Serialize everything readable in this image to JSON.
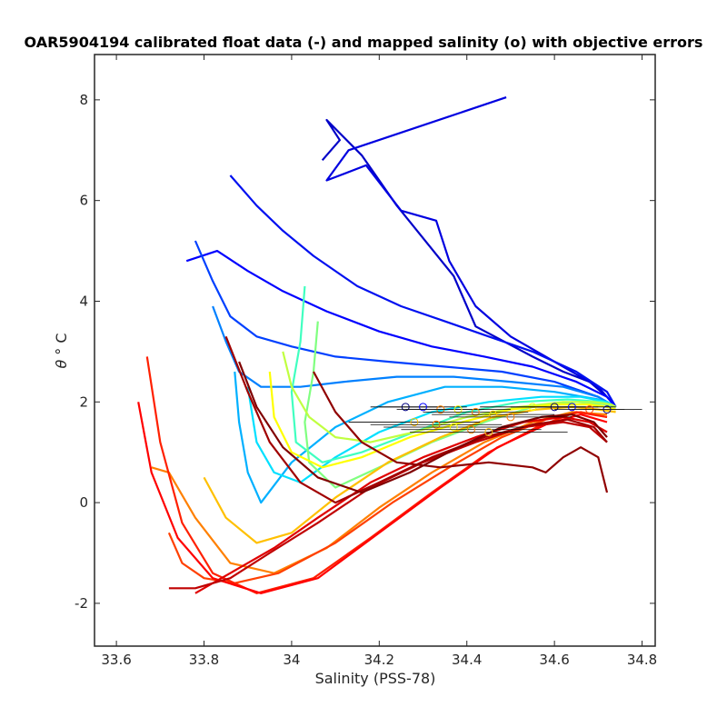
{
  "chart_data": {
    "type": "line",
    "title": "OAR5904194 calibrated float data (-) and mapped salinity (o) with objective errors",
    "xlabel": "Salinity (PSS-78)",
    "ylabel_symbol": "θ",
    "ylabel_unit": "° C",
    "xlim": [
      33.55,
      34.83
    ],
    "ylim": [
      -2.85,
      8.9
    ],
    "xticks": [
      33.6,
      33.8,
      34,
      34.2,
      34.4,
      34.6,
      34.8
    ],
    "xtick_labels": [
      "33.6",
      "33.8",
      "34",
      "34.2",
      "34.4",
      "34.6",
      "34.8"
    ],
    "yticks": [
      -2,
      0,
      2,
      4,
      6,
      8
    ],
    "ytick_labels": [
      "-2",
      "0",
      "2",
      "4",
      "6",
      "8"
    ],
    "grid": false,
    "colormap": "jet",
    "color_stops": [
      "#00008f",
      "#0000ff",
      "#00ffff",
      "#ffff00",
      "#ff0000",
      "#800000"
    ],
    "series": [
      {
        "color": "#0000c8",
        "x": [
          34.07,
          34.11,
          34.08,
          34.16,
          34.24,
          34.37,
          34.42,
          34.55,
          34.62,
          34.68,
          34.72,
          34.74
        ],
        "y": [
          6.8,
          7.2,
          7.6,
          6.9,
          5.9,
          4.5,
          3.5,
          2.9,
          2.6,
          2.4,
          2.1,
          1.9
        ]
      },
      {
        "color": "#0000e0",
        "x": [
          34.49,
          34.13,
          34.08,
          34.17,
          34.25,
          34.33,
          34.36,
          34.42,
          34.5,
          34.6,
          34.7,
          34.74
        ],
        "y": [
          8.05,
          7.0,
          6.4,
          6.7,
          5.8,
          5.6,
          4.8,
          3.9,
          3.3,
          2.8,
          2.3,
          1.9
        ]
      },
      {
        "color": "#0010f0",
        "x": [
          33.86,
          33.92,
          33.98,
          34.05,
          34.15,
          34.25,
          34.35,
          34.45,
          34.55,
          34.65,
          34.72,
          34.74
        ],
        "y": [
          6.5,
          5.9,
          5.4,
          4.9,
          4.3,
          3.9,
          3.6,
          3.3,
          3.0,
          2.6,
          2.2,
          1.9
        ]
      },
      {
        "color": "#0000ff",
        "x": [
          33.76,
          33.83,
          33.9,
          33.98,
          34.08,
          34.2,
          34.32,
          34.44,
          34.55,
          34.65,
          34.72,
          34.74
        ],
        "y": [
          4.8,
          5.0,
          4.6,
          4.2,
          3.8,
          3.4,
          3.1,
          2.9,
          2.7,
          2.4,
          2.1,
          1.9
        ]
      },
      {
        "color": "#0040ff",
        "x": [
          33.78,
          33.82,
          33.86,
          33.92,
          34.0,
          34.1,
          34.22,
          34.35,
          34.48,
          34.6,
          34.7,
          34.74
        ],
        "y": [
          5.2,
          4.4,
          3.7,
          3.3,
          3.1,
          2.9,
          2.8,
          2.7,
          2.6,
          2.4,
          2.1,
          1.9
        ]
      },
      {
        "color": "#0080ff",
        "x": [
          33.82,
          33.85,
          33.88,
          33.93,
          34.02,
          34.12,
          34.24,
          34.37,
          34.5,
          34.62,
          34.7,
          34.74
        ],
        "y": [
          3.9,
          3.2,
          2.6,
          2.3,
          2.3,
          2.4,
          2.5,
          2.5,
          2.4,
          2.3,
          2.1,
          1.9
        ]
      },
      {
        "color": "#00b0ff",
        "x": [
          33.87,
          33.88,
          33.9,
          33.93,
          34.0,
          34.1,
          34.22,
          34.35,
          34.48,
          34.6,
          34.7,
          34.74
        ],
        "y": [
          2.6,
          1.6,
          0.6,
          0.0,
          0.8,
          1.5,
          2.0,
          2.3,
          2.3,
          2.2,
          2.05,
          1.9
        ]
      },
      {
        "color": "#00e0ff",
        "x": [
          33.9,
          33.92,
          33.96,
          34.02,
          34.1,
          34.2,
          34.32,
          34.45,
          34.57,
          34.66,
          34.72,
          34.74
        ],
        "y": [
          2.3,
          1.2,
          0.6,
          0.4,
          0.9,
          1.4,
          1.8,
          2.0,
          2.1,
          2.1,
          2.0,
          1.9
        ]
      },
      {
        "color": "#40ffc0",
        "x": [
          34.03,
          34.02,
          34.0,
          34.01,
          34.07,
          34.16,
          34.28,
          34.4,
          34.52,
          34.63,
          34.71,
          34.74
        ],
        "y": [
          4.3,
          3.2,
          2.2,
          1.2,
          0.8,
          1.0,
          1.4,
          1.8,
          2.0,
          2.05,
          2.0,
          1.9
        ]
      },
      {
        "color": "#80ff80",
        "x": [
          34.06,
          34.05,
          34.03,
          34.04,
          34.1,
          34.2,
          34.32,
          34.44,
          34.55,
          34.65,
          34.72,
          34.74
        ],
        "y": [
          3.6,
          2.6,
          1.6,
          0.8,
          0.3,
          0.7,
          1.2,
          1.6,
          1.9,
          2.0,
          1.95,
          1.9
        ]
      },
      {
        "color": "#c0ff40",
        "x": [
          33.98,
          34.0,
          34.04,
          34.1,
          34.18,
          34.28,
          34.4,
          34.52,
          34.62,
          34.69,
          34.73,
          34.74
        ],
        "y": [
          3.0,
          2.3,
          1.7,
          1.3,
          1.2,
          1.4,
          1.7,
          1.9,
          2.0,
          2.0,
          1.95,
          1.9
        ]
      },
      {
        "color": "#ffff00",
        "x": [
          33.95,
          33.96,
          34.0,
          34.07,
          34.16,
          34.27,
          34.39,
          34.5,
          34.6,
          34.68,
          34.72,
          34.74
        ],
        "y": [
          2.6,
          1.7,
          1.0,
          0.7,
          0.9,
          1.3,
          1.6,
          1.85,
          1.95,
          1.95,
          1.9,
          1.85
        ]
      },
      {
        "color": "#ffc000",
        "x": [
          33.8,
          33.85,
          33.92,
          34.0,
          34.1,
          34.22,
          34.34,
          34.46,
          34.56,
          34.64,
          34.7,
          34.74
        ],
        "y": [
          0.5,
          -0.3,
          -0.8,
          -0.6,
          0.1,
          0.8,
          1.3,
          1.7,
          1.85,
          1.9,
          1.85,
          1.8
        ]
      },
      {
        "color": "#ff8000",
        "x": [
          33.68,
          33.72,
          33.78,
          33.86,
          33.96,
          34.08,
          34.2,
          34.32,
          34.44,
          34.55,
          34.64,
          34.72
        ],
        "y": [
          0.7,
          0.6,
          -0.3,
          -1.2,
          -1.4,
          -0.9,
          -0.1,
          0.6,
          1.2,
          1.6,
          1.8,
          1.75
        ]
      },
      {
        "color": "#ff4000",
        "x": [
          33.72,
          33.75,
          33.8,
          33.87,
          33.97,
          34.1,
          34.23,
          34.36,
          34.48,
          34.58,
          34.66,
          34.72
        ],
        "y": [
          -0.6,
          -1.2,
          -1.5,
          -1.6,
          -1.4,
          -0.8,
          0.0,
          0.7,
          1.3,
          1.65,
          1.8,
          1.7
        ]
      },
      {
        "color": "#ff2000",
        "x": [
          33.67,
          33.7,
          33.75,
          33.82,
          33.92,
          34.05,
          34.18,
          34.32,
          34.45,
          34.56,
          34.65,
          34.72
        ],
        "y": [
          2.9,
          1.2,
          -0.4,
          -1.4,
          -1.8,
          -1.5,
          -0.7,
          0.2,
          1.0,
          1.5,
          1.8,
          1.7
        ]
      },
      {
        "color": "#ff0000",
        "x": [
          33.65,
          33.68,
          33.74,
          33.82,
          33.93,
          34.06,
          34.2,
          34.34,
          34.47,
          34.58,
          34.66,
          34.72
        ],
        "y": [
          2.0,
          0.6,
          -0.7,
          -1.5,
          -1.8,
          -1.5,
          -0.6,
          0.3,
          1.1,
          1.55,
          1.75,
          1.6
        ]
      },
      {
        "color": "#e00000",
        "x": [
          33.78,
          33.82,
          33.88,
          33.96,
          34.06,
          34.18,
          34.3,
          34.42,
          34.53,
          34.62,
          34.68,
          34.72
        ],
        "y": [
          -1.8,
          -1.6,
          -1.3,
          -0.9,
          -0.3,
          0.4,
          0.9,
          1.3,
          1.6,
          1.7,
          1.6,
          1.4
        ]
      },
      {
        "color": "#c00000",
        "x": [
          33.72,
          33.78,
          33.86,
          33.95,
          34.06,
          34.18,
          34.3,
          34.42,
          34.53,
          34.62,
          34.68,
          34.72
        ],
        "y": [
          -1.7,
          -1.7,
          -1.5,
          -1.0,
          -0.4,
          0.3,
          0.8,
          1.2,
          1.5,
          1.6,
          1.5,
          1.2
        ]
      },
      {
        "color": "#a00000",
        "x": [
          33.85,
          33.9,
          33.95,
          34.02,
          34.1,
          34.2,
          34.32,
          34.44,
          34.55,
          34.63,
          34.69,
          34.72
        ],
        "y": [
          3.3,
          2.2,
          1.2,
          0.4,
          0.0,
          0.4,
          0.9,
          1.3,
          1.55,
          1.65,
          1.5,
          1.2
        ]
      },
      {
        "color": "#900000",
        "x": [
          34.05,
          34.1,
          34.16,
          34.24,
          34.34,
          34.45,
          34.55,
          34.58,
          34.62,
          34.66,
          34.7,
          34.72
        ],
        "y": [
          2.6,
          1.8,
          1.2,
          0.8,
          0.7,
          0.8,
          0.7,
          0.6,
          0.9,
          1.1,
          0.9,
          0.2
        ]
      },
      {
        "color": "#800000",
        "x": [
          33.88,
          33.92,
          33.98,
          34.06,
          34.16,
          34.27,
          34.38,
          34.48,
          34.57,
          34.64,
          34.69,
          34.72
        ],
        "y": [
          2.8,
          1.9,
          1.1,
          0.5,
          0.2,
          0.6,
          1.1,
          1.5,
          1.7,
          1.75,
          1.6,
          1.3
        ]
      }
    ],
    "mapped_salinity": {
      "marker": "o",
      "x": [
        34.26,
        34.3,
        34.34,
        34.38,
        34.42,
        34.46,
        34.5,
        34.55,
        34.6,
        34.64,
        34.68,
        34.72,
        34.28,
        34.33,
        34.37,
        34.41,
        34.45
      ],
      "y": [
        1.9,
        1.9,
        1.85,
        1.85,
        1.8,
        1.75,
        1.7,
        1.9,
        1.9,
        1.9,
        1.85,
        1.85,
        1.6,
        1.55,
        1.5,
        1.45,
        1.4
      ],
      "errors": [
        0.08,
        0.1,
        0.1,
        0.12,
        0.12,
        0.14,
        0.14,
        0.12,
        0.1,
        0.1,
        0.08,
        0.08,
        0.15,
        0.15,
        0.16,
        0.16,
        0.18
      ],
      "colors": [
        "#000080",
        "#0000ff",
        "#ff8000",
        "#ffff00",
        "#ff8000",
        "#ffc000",
        "#ff8000",
        "#ffff00",
        "#000080",
        "#0000ff",
        "#ff4000",
        "#000080",
        "#ffc000",
        "#ff8000",
        "#ffff00",
        "#ff8000",
        "#ffc000"
      ]
    }
  }
}
